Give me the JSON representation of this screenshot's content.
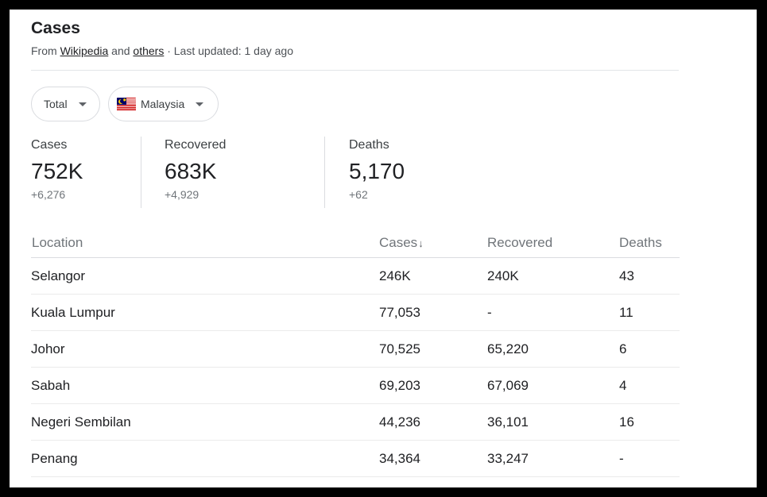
{
  "header": {
    "title": "Cases",
    "source_prefix": "From",
    "source_link_1": "Wikipedia",
    "source_mid": "and",
    "source_link_2": "others",
    "source_suffix": "· Last updated: 1 day ago"
  },
  "filters": {
    "total_label": "Total",
    "country_label": "Malaysia",
    "country_flag": "malaysia-flag-icon"
  },
  "stats": [
    {
      "label": "Cases",
      "value": "752K",
      "delta": "+6,276"
    },
    {
      "label": "Recovered",
      "value": "683K",
      "delta": "+4,929"
    },
    {
      "label": "Deaths",
      "value": "5,170",
      "delta": "+62"
    }
  ],
  "table": {
    "headers": {
      "location": "Location",
      "cases": "Cases",
      "cases_sort_icon": "↓",
      "recovered": "Recovered",
      "deaths": "Deaths"
    },
    "rows": [
      {
        "location": "Selangor",
        "cases": "246K",
        "recovered": "240K",
        "deaths": "43"
      },
      {
        "location": "Kuala Lumpur",
        "cases": "77,053",
        "recovered": "-",
        "deaths": "11"
      },
      {
        "location": "Johor",
        "cases": "70,525",
        "recovered": "65,220",
        "deaths": "6"
      },
      {
        "location": "Sabah",
        "cases": "69,203",
        "recovered": "67,069",
        "deaths": "4"
      },
      {
        "location": "Negeri Sembilan",
        "cases": "44,236",
        "recovered": "36,101",
        "deaths": "16"
      },
      {
        "location": "Penang",
        "cases": "34,364",
        "recovered": "33,247",
        "deaths": "-"
      }
    ]
  },
  "colors": {
    "text_primary": "#202124",
    "text_secondary": "#70757a",
    "divider": "#dadce0",
    "page_bg": "#ffffff",
    "outer_bg": "#000000"
  }
}
